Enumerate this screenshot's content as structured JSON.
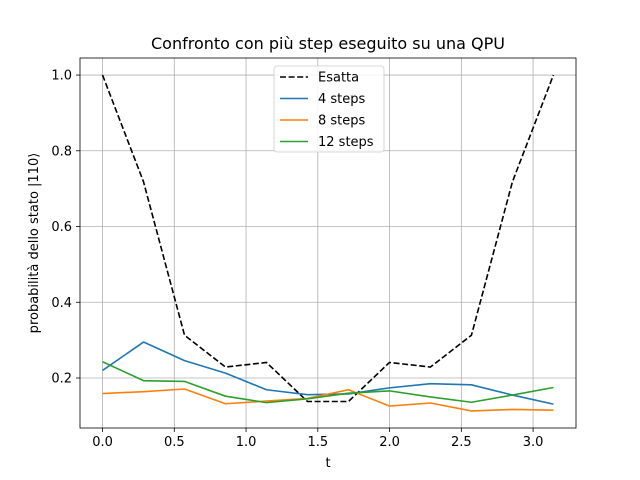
{
  "chart_data": {
    "type": "line",
    "title": "Confronto con più step eseguito su una QPU",
    "xlabel": "t",
    "ylabel": "probabilità dello stato |110⟩",
    "xlim": [
      -0.157,
      3.299
    ],
    "ylim": [
      0.068,
      1.045
    ],
    "xticks": [
      0.0,
      0.5,
      1.0,
      1.5,
      2.0,
      2.5,
      3.0
    ],
    "xtick_labels": [
      "0.0",
      "0.5",
      "1.0",
      "1.5",
      "2.0",
      "2.5",
      "3.0"
    ],
    "yticks": [
      0.2,
      0.4,
      0.6,
      0.8,
      1.0
    ],
    "ytick_labels": [
      "0.2",
      "0.4",
      "0.6",
      "0.8",
      "1.0"
    ],
    "grid": true,
    "legend_position": "top-center",
    "x": [
      0.0,
      0.2856,
      0.5712,
      0.8568,
      1.1424,
      1.428,
      1.7136,
      1.9992,
      2.2848,
      2.5704,
      2.856,
      3.1416
    ],
    "series": [
      {
        "name": "Esatta",
        "color": "#000000",
        "style": "dashed",
        "values": [
          1.0,
          0.718,
          0.313,
          0.229,
          0.241,
          0.138,
          0.138,
          0.241,
          0.229,
          0.313,
          0.718,
          1.0
        ]
      },
      {
        "name": "4 steps",
        "color": "#1f77b4",
        "style": "solid",
        "values": [
          0.22,
          0.295,
          0.246,
          0.213,
          0.169,
          0.156,
          0.158,
          0.174,
          0.185,
          0.182,
          0.155,
          0.131
        ]
      },
      {
        "name": "8 steps",
        "color": "#ff7f0e",
        "style": "solid",
        "values": [
          0.159,
          0.164,
          0.171,
          0.132,
          0.139,
          0.146,
          0.169,
          0.126,
          0.134,
          0.113,
          0.117,
          0.115
        ]
      },
      {
        "name": "12 steps",
        "color": "#2ca02c",
        "style": "solid",
        "values": [
          0.243,
          0.193,
          0.191,
          0.152,
          0.135,
          0.145,
          0.16,
          0.166,
          0.15,
          0.136,
          0.155,
          0.175
        ]
      }
    ]
  }
}
